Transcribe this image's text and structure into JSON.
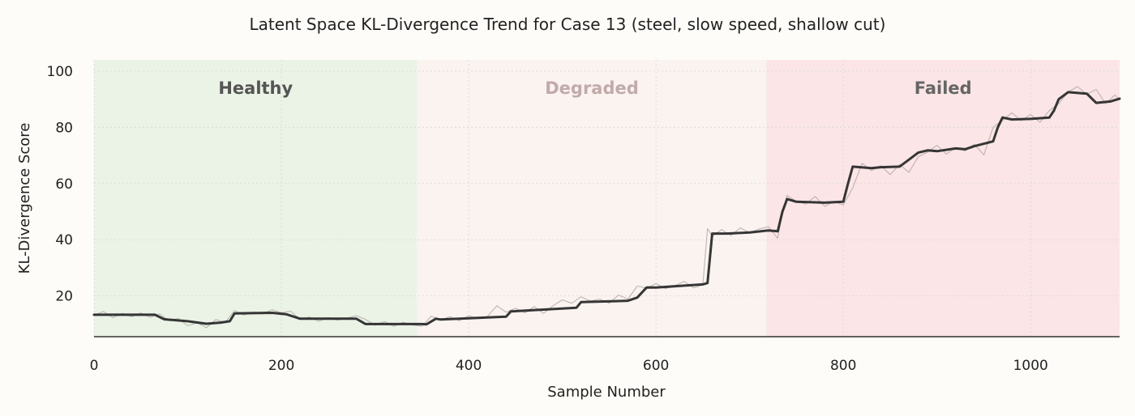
{
  "chart_data": {
    "type": "line",
    "title": "Latent Space KL-Divergence Trend for Case 13 (steel, slow speed, shallow cut)",
    "xlabel": "Sample Number",
    "ylabel": "KL-Divergence Score",
    "xlim": [
      0,
      1095
    ],
    "ylim": [
      5.5,
      104
    ],
    "xticks": [
      0,
      200,
      400,
      600,
      800,
      1000
    ],
    "yticks": [
      20,
      40,
      60,
      80,
      100
    ],
    "grid": true,
    "regions": [
      {
        "label": "Healthy",
        "x_start": 0,
        "x_end": 345,
        "color": "#eaf3e6",
        "label_color": "#555555"
      },
      {
        "label": "Degraded",
        "x_start": 345,
        "x_end": 718,
        "color": "#faf3f0",
        "label_color": "#c2aaaa"
      },
      {
        "label": "Failed",
        "x_start": 718,
        "x_end": 1095,
        "color": "#fbe5e6",
        "label_color": "#666666"
      }
    ],
    "series": [
      {
        "style": "raw",
        "color": "#b3aaa8",
        "x": [
          0,
          10,
          20,
          30,
          40,
          50,
          60,
          70,
          80,
          90,
          100,
          110,
          120,
          130,
          140,
          150,
          160,
          170,
          180,
          190,
          200,
          210,
          220,
          230,
          240,
          250,
          260,
          270,
          280,
          290,
          300,
          310,
          320,
          330,
          340,
          350,
          360,
          370,
          380,
          390,
          400,
          410,
          420,
          430,
          440,
          450,
          460,
          470,
          480,
          490,
          500,
          510,
          520,
          530,
          540,
          550,
          560,
          570,
          580,
          590,
          600,
          610,
          620,
          630,
          640,
          650,
          655,
          660,
          670,
          680,
          690,
          700,
          710,
          720,
          730,
          735,
          740,
          750,
          760,
          770,
          780,
          790,
          800,
          810,
          820,
          830,
          840,
          850,
          860,
          870,
          880,
          890,
          900,
          910,
          920,
          930,
          940,
          950,
          960,
          970,
          980,
          990,
          1000,
          1010,
          1020,
          1030,
          1040,
          1050,
          1060,
          1070,
          1080,
          1090,
          1095
        ],
        "y": [
          13.0,
          14.5,
          12.3,
          13.8,
          12.6,
          13.9,
          12.4,
          13.6,
          11.2,
          12.0,
          9.4,
          10.5,
          8.7,
          11.6,
          10.5,
          14.8,
          13.2,
          14.3,
          13.6,
          15.1,
          14.0,
          14.6,
          11.6,
          12.5,
          11.0,
          12.3,
          11.4,
          12.1,
          13.0,
          11.6,
          9.6,
          10.9,
          9.2,
          10.6,
          9.7,
          9.2,
          12.8,
          11.4,
          12.6,
          11.2,
          12.9,
          12.0,
          12.7,
          16.5,
          14.2,
          15.6,
          14.0,
          16.2,
          13.8,
          16.5,
          18.6,
          17.4,
          19.7,
          18.2,
          18.9,
          17.4,
          20.3,
          18.9,
          23.5,
          22.8,
          24.4,
          22.6,
          23.6,
          25.2,
          22.9,
          24.0,
          44.0,
          41.2,
          43.6,
          41.5,
          44.2,
          42.5,
          43.8,
          44.6,
          40.5,
          50.0,
          55.8,
          53.6,
          52.7,
          55.4,
          51.9,
          53.6,
          52.4,
          58.4,
          67.2,
          64.6,
          66.4,
          63.2,
          66.8,
          64.0,
          69.5,
          71.2,
          73.6,
          70.5,
          72.8,
          71.6,
          74.0,
          70.2,
          80.0,
          82.5,
          85.2,
          82.4,
          84.6,
          81.8,
          86.0,
          88.4,
          92.6,
          94.5,
          91.8,
          93.5,
          88.5,
          91.5,
          90.0
        ]
      },
      {
        "style": "smoothed",
        "color": "#2b2b2b",
        "x": [
          0,
          65,
          75,
          100,
          120,
          135,
          145,
          150,
          190,
          205,
          220,
          280,
          290,
          350,
          355,
          365,
          370,
          440,
          445,
          515,
          520,
          570,
          580,
          590,
          600,
          650,
          655,
          660,
          675,
          700,
          720,
          730,
          735,
          740,
          750,
          780,
          800,
          805,
          810,
          830,
          840,
          860,
          870,
          880,
          890,
          900,
          920,
          930,
          940,
          960,
          965,
          970,
          980,
          1000,
          1020,
          1025,
          1030,
          1040,
          1060,
          1070,
          1085,
          1095
        ],
        "y": [
          13.3,
          13.3,
          11.7,
          11.0,
          10.1,
          10.5,
          11.0,
          13.8,
          14.0,
          13.5,
          11.9,
          11.9,
          10.0,
          10.0,
          9.9,
          11.9,
          11.6,
          12.6,
          14.5,
          15.8,
          17.8,
          18.3,
          19.4,
          23.0,
          23.0,
          24.1,
          24.6,
          42.2,
          42.2,
          42.6,
          43.3,
          43.0,
          50.0,
          54.5,
          53.5,
          53.2,
          53.5,
          60.0,
          66.0,
          65.5,
          65.8,
          66.0,
          68.5,
          71.0,
          71.8,
          71.5,
          72.5,
          72.2,
          73.3,
          75.0,
          80.0,
          83.5,
          82.8,
          83.0,
          83.5,
          86.0,
          90.0,
          92.5,
          92.0,
          88.7,
          89.2,
          90.2
        ]
      }
    ]
  }
}
